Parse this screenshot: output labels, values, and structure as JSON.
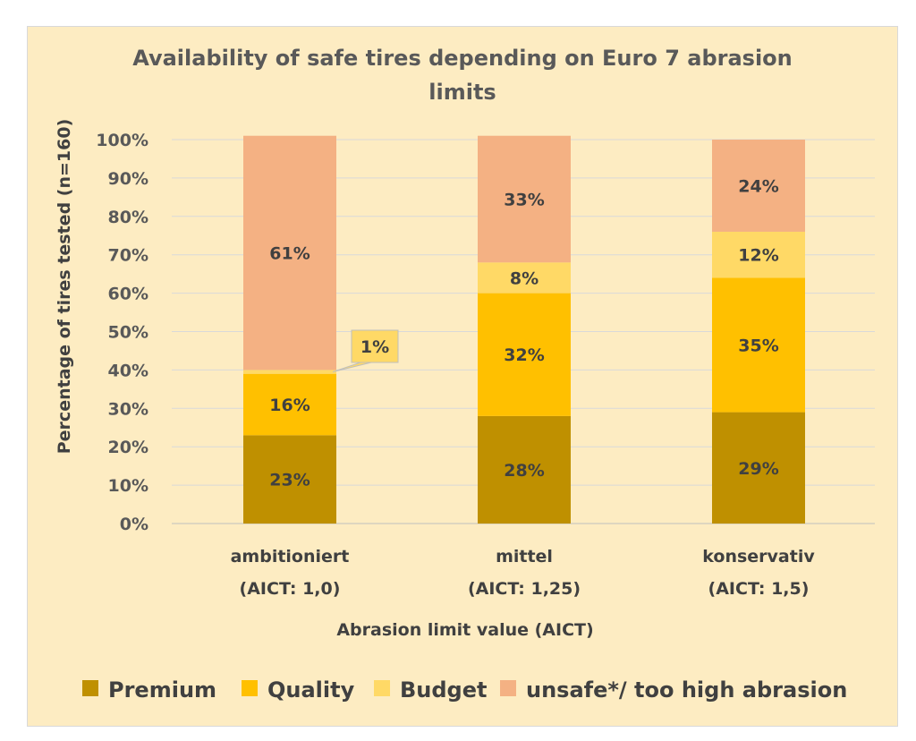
{
  "chart_data": {
    "type": "bar",
    "stacked": true,
    "title": "Availability of safe tires depending on Euro 7 abrasion",
    "title_line2": "limits",
    "xlabel": "Abrasion limit value (AICT)",
    "ylabel": "Percentage of tires tested (n=160)",
    "ylim": [
      0,
      100
    ],
    "yticks": [
      "0%",
      "10%",
      "20%",
      "30%",
      "40%",
      "50%",
      "60%",
      "70%",
      "80%",
      "90%",
      "100%"
    ],
    "categories": [
      {
        "line1": "ambitioniert",
        "line2": "(AICT: 1,0)"
      },
      {
        "line1": "mittel",
        "line2": "(AICT: 1,25)"
      },
      {
        "line1": "konservativ",
        "line2": "(AICT: 1,5)"
      }
    ],
    "series": [
      {
        "name": "Premium",
        "color": "#bf9000",
        "values": [
          23,
          28,
          29
        ],
        "labels": [
          "23%",
          "28%",
          "29%"
        ]
      },
      {
        "name": "Quality",
        "color": "#ffc000",
        "values": [
          16,
          32,
          35
        ],
        "labels": [
          "16%",
          "32%",
          "35%"
        ]
      },
      {
        "name": "Budget",
        "color": "#ffd966",
        "values": [
          1,
          8,
          12
        ],
        "labels": [
          "1%",
          "8%",
          "12%"
        ]
      },
      {
        "name": "unsafe*/ too high abrasion",
        "color": "#f4b183",
        "values": [
          61,
          33,
          24
        ],
        "labels": [
          "61%",
          "33%",
          "24%"
        ]
      }
    ],
    "grid": true,
    "legend_position": "bottom",
    "callout": {
      "series": "Budget",
      "category_index": 0,
      "label": "1%"
    }
  }
}
